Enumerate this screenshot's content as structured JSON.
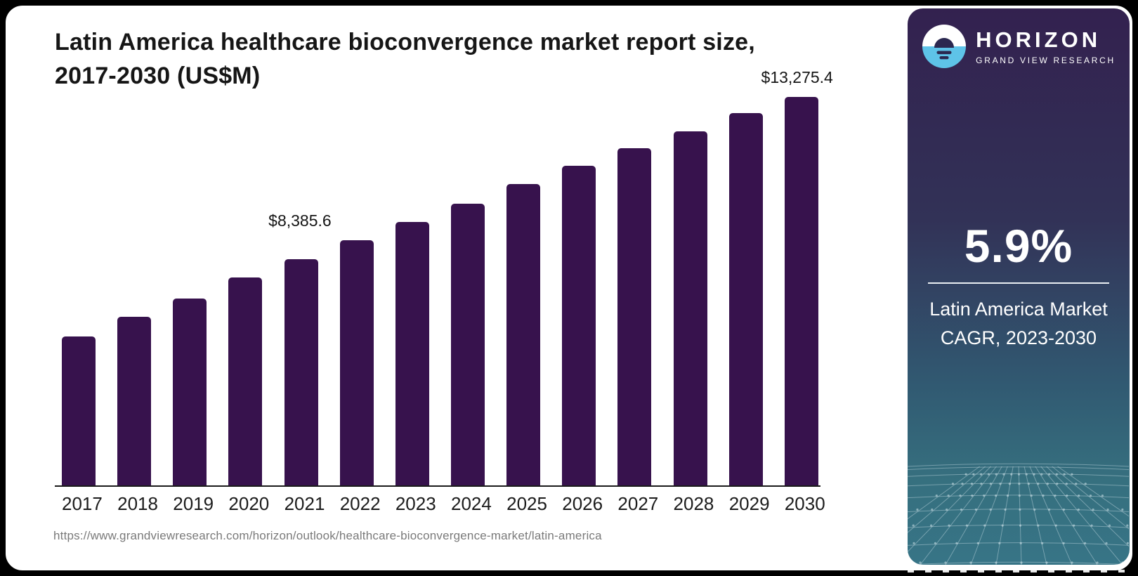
{
  "chart": {
    "title": "Latin America healthcare bioconvergence market report size, 2017-2030 (US$M)",
    "source_url": "https://www.grandviewresearch.com/horizon/outlook/healthcare-bioconvergence-market/latin-america"
  },
  "chart_data": {
    "type": "bar",
    "title": "Latin America healthcare bioconvergence market report size, 2017-2030 (US$M)",
    "categories": [
      "2017",
      "2018",
      "2019",
      "2020",
      "2021",
      "2022",
      "2023",
      "2024",
      "2025",
      "2026",
      "2027",
      "2028",
      "2029",
      "2030"
    ],
    "values": [
      5090,
      5765,
      6390,
      7110,
      7735,
      8385.6,
      9010,
      9630,
      10305,
      10930,
      11530,
      12110,
      12730,
      13275.4
    ],
    "value_labels": [
      "",
      "",
      "",
      "",
      "",
      "$8,385.6",
      "",
      "",
      "",
      "",
      "",
      "",
      "",
      "$13,275.4"
    ],
    "xlabel": "",
    "ylabel": "US$M",
    "ylim": [
      0,
      13900
    ],
    "grid": false,
    "legend": "none",
    "unit": "US$M",
    "note": "values without data labels are estimated from bar heights"
  },
  "sidebar": {
    "brand": {
      "name": "HORIZON",
      "subtitle": "GRAND VIEW RESEARCH"
    },
    "cagr_value": "5.9%",
    "cagr_caption_line1": "Latin America Market",
    "cagr_caption_line2": "CAGR, 2023-2030"
  },
  "colors": {
    "bar": "#37124d",
    "page_background": "#000000",
    "card_background": "#ffffff",
    "title_text": "#161616",
    "url_text": "#7a7a7a",
    "sidebar_gradient_top": "#33214f",
    "sidebar_gradient_mid": "#323257",
    "sidebar_gradient_bottom": "#377486",
    "logo_blue": "#5ec3e8",
    "logo_dark": "#2b2850",
    "sidebar_text": "#ffffff",
    "mesh_line": "#cfe3ea"
  }
}
